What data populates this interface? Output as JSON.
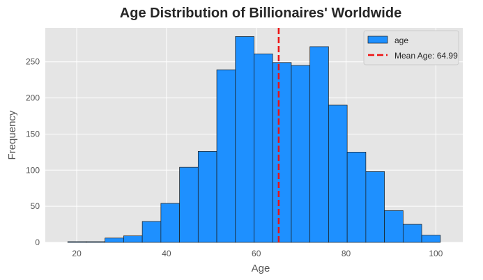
{
  "chart_data": {
    "type": "bar",
    "title": "Age Distribution of Billionaires' Worldwide",
    "xlabel": "Age",
    "ylabel": "Frequency",
    "xlim": [
      13,
      106
    ],
    "ylim": [
      0,
      297
    ],
    "xticks": [
      20,
      40,
      60,
      80,
      100
    ],
    "yticks": [
      0,
      50,
      100,
      150,
      200,
      250
    ],
    "grid": true,
    "legend_position": "top-right",
    "bin_edges": [
      18,
      22.15,
      26.3,
      30.45,
      34.6,
      38.75,
      42.9,
      47.05,
      51.2,
      55.35,
      59.5,
      63.65,
      67.8,
      71.95,
      76.1,
      80.25,
      84.4,
      88.55,
      92.7,
      96.85,
      101
    ],
    "series": [
      {
        "name": "age",
        "values": [
          1,
          1,
          6,
          9,
          29,
          54,
          104,
          126,
          239,
          285,
          261,
          249,
          245,
          271,
          190,
          125,
          98,
          44,
          25,
          10
        ],
        "color": "#1e90ff",
        "edgecolor": "#1a1a1a"
      }
    ],
    "mean_line": {
      "label": "Mean Age: 64.99",
      "x": 64.99,
      "color": "#ee1111",
      "style": "dashed"
    }
  },
  "colors": {
    "plot_background": "#e5e5e5",
    "grid": "#ffffff",
    "legend_background": "#e5e5e5"
  }
}
